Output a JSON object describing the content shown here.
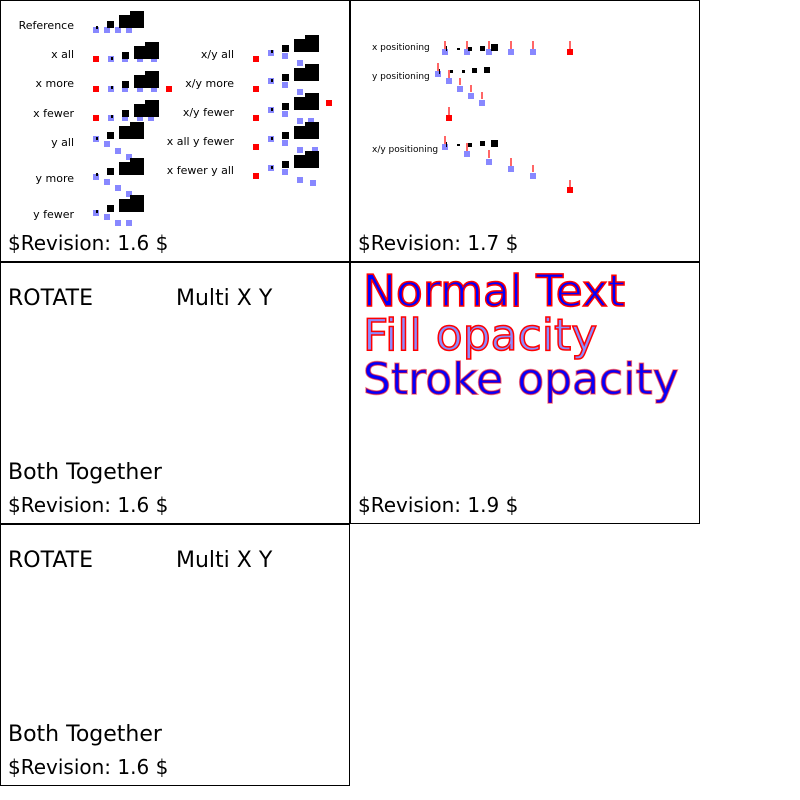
{
  "panels": [
    {
      "labels": {
        "reference": "Reference",
        "x_all": "x all",
        "x_more": "x more",
        "x_fewer": "x fewer",
        "y_all": "y all",
        "y_more": "y more",
        "y_fewer": "y fewer",
        "xy_all": "x/y all",
        "xy_more": "x/y more",
        "xy_fewer": "x/y fewer",
        "x_all_y_fewer": "x all y fewer",
        "x_fewer_y_all": "x fewer y all"
      },
      "revision": "$Revision: 1.6 $"
    },
    {
      "labels": {
        "x_pos": "x positioning",
        "y_pos": "y positioning",
        "xy_pos": "x/y positioning"
      },
      "revision": "$Revision: 1.7 $"
    },
    {
      "rotate": "ROTATE",
      "multi": "Multi X Y",
      "both": "Both Together",
      "revision": "$Revision: 1.6 $"
    },
    {
      "normal": "Normal Text",
      "fill_opacity": "Fill opacity",
      "stroke_opacity": "Stroke opacity",
      "revision": "$Revision: 1.9 $"
    },
    {
      "rotate": "ROTATE",
      "multi": "Multi X Y",
      "both": "Both Together",
      "revision": "$Revision: 1.6 $"
    }
  ],
  "colors": {
    "fill": "#0000ff",
    "stroke": "#ff0000",
    "marker_blue": "#8888ff",
    "marker_red": "#ff0000"
  }
}
